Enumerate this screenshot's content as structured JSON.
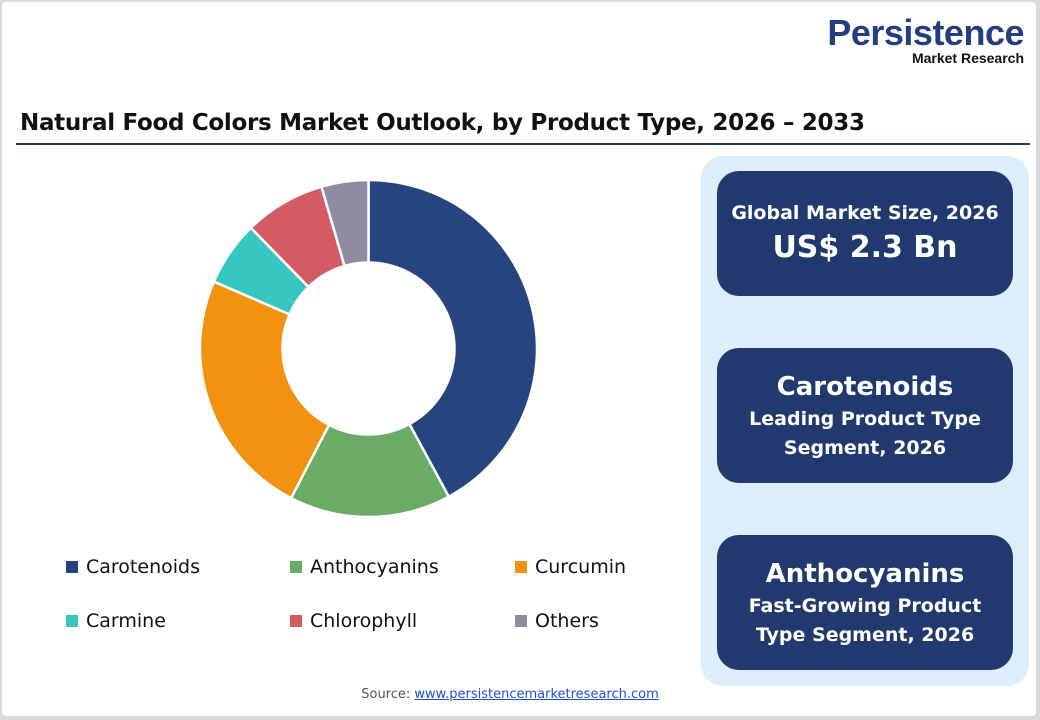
{
  "logo": {
    "name": "Persistence",
    "tagline": "Market Research"
  },
  "title": "Natural Food Colors Market Outlook, by Product Type, 2026 – 2033",
  "chart_data": {
    "type": "pie",
    "donut": true,
    "categories": [
      "Carotenoids",
      "Anthocyanins",
      "Curcumin",
      "Carmine",
      "Chlorophyll",
      "Others"
    ],
    "values": [
      42.1,
      15.5,
      23.9,
      6.2,
      7.8,
      4.5
    ],
    "unit": "% share (estimated)",
    "colors": [
      "#264480",
      "#6aab66",
      "#f39110",
      "#36c7c1",
      "#d45b61",
      "#8f8ba3"
    ],
    "legend_position": "bottom"
  },
  "panel": {
    "box1": {
      "label": "Global Market Size, 2026",
      "value": "US$ 2.3 Bn"
    },
    "box2": {
      "value": "Carotenoids",
      "label1": "Leading Product Type",
      "label2": "Segment, 2026"
    },
    "box3": {
      "value": "Anthocyanins",
      "label1": "Fast-Growing Product",
      "label2": "Type Segment, 2026"
    }
  },
  "source": {
    "label": "Source:",
    "link": "www.persistencemarketresearch.com"
  }
}
